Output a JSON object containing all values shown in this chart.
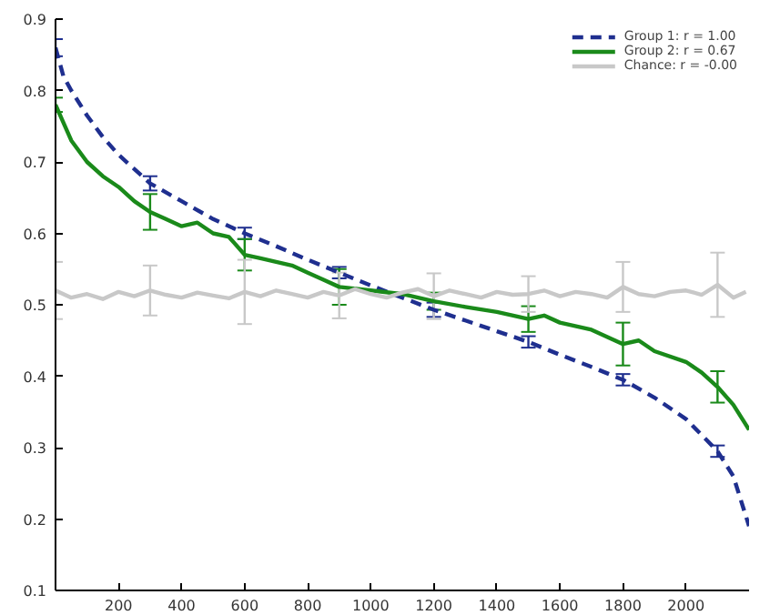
{
  "chart_data": {
    "type": "line",
    "xlim": [
      0,
      2200
    ],
    "ylim": [
      0.1,
      0.9
    ],
    "xticks": [
      200,
      400,
      600,
      800,
      1000,
      1200,
      1400,
      1600,
      1800,
      2000
    ],
    "yticks": [
      0.1,
      0.2,
      0.3,
      0.4,
      0.5,
      0.6,
      0.7,
      0.8,
      0.9
    ],
    "grid": false,
    "legend": "top right",
    "marker": "none",
    "series": [
      {
        "name": "Group 1: r = 1.00",
        "color": "#1f2f8f",
        "line_style": "dashed",
        "x": [
          0,
          25,
          50,
          100,
          150,
          200,
          300,
          400,
          500,
          600,
          700,
          800,
          900,
          1000,
          1100,
          1200,
          1300,
          1400,
          1500,
          1600,
          1700,
          1800,
          1900,
          2000,
          2100,
          2150,
          2200
        ],
        "values": [
          0.86,
          0.82,
          0.8,
          0.765,
          0.735,
          0.71,
          0.67,
          0.645,
          0.62,
          0.6,
          0.582,
          0.563,
          0.545,
          0.527,
          0.51,
          0.493,
          0.478,
          0.463,
          0.448,
          0.43,
          0.413,
          0.395,
          0.37,
          0.34,
          0.295,
          0.26,
          0.19
        ],
        "errors": [
          0.012,
          null,
          null,
          null,
          null,
          null,
          0.01,
          null,
          null,
          0.008,
          null,
          null,
          0.008,
          null,
          null,
          0.01,
          null,
          null,
          0.008,
          null,
          null,
          0.008,
          null,
          null,
          0.008,
          null,
          null
        ]
      },
      {
        "name": "Group 2: r = 0.67",
        "color": "#1a8a1a",
        "line_style": "solid",
        "x": [
          0,
          20,
          50,
          100,
          150,
          200,
          250,
          300,
          350,
          400,
          450,
          500,
          550,
          600,
          650,
          700,
          750,
          800,
          850,
          900,
          1000,
          1100,
          1200,
          1300,
          1400,
          1500,
          1550,
          1600,
          1700,
          1800,
          1850,
          1900,
          2000,
          2050,
          2100,
          2150,
          2200
        ],
        "values": [
          0.78,
          0.76,
          0.73,
          0.7,
          0.68,
          0.665,
          0.645,
          0.63,
          0.62,
          0.61,
          0.615,
          0.6,
          0.595,
          0.57,
          0.565,
          0.56,
          0.555,
          0.545,
          0.535,
          0.525,
          0.52,
          0.515,
          0.505,
          0.497,
          0.49,
          0.48,
          0.485,
          0.475,
          0.465,
          0.445,
          0.45,
          0.435,
          0.42,
          0.405,
          0.385,
          0.36,
          0.325
        ],
        "errors": [
          0.01,
          null,
          null,
          null,
          null,
          null,
          null,
          0.025,
          null,
          null,
          null,
          null,
          null,
          0.022,
          null,
          null,
          null,
          null,
          null,
          0.025,
          null,
          null,
          0.012,
          null,
          null,
          0.018,
          null,
          null,
          null,
          0.03,
          null,
          null,
          null,
          null,
          0.022,
          null,
          null
        ]
      },
      {
        "name": "Chance: r = -0.00",
        "color": "#c8c8c8",
        "line_style": "solid",
        "x": [
          0,
          50,
          100,
          150,
          200,
          250,
          300,
          350,
          400,
          450,
          500,
          550,
          600,
          650,
          700,
          750,
          800,
          850,
          900,
          950,
          1000,
          1050,
          1100,
          1150,
          1200,
          1250,
          1300,
          1350,
          1400,
          1450,
          1500,
          1550,
          1600,
          1650,
          1700,
          1750,
          1800,
          1850,
          1900,
          1950,
          2000,
          2050,
          2100,
          2150,
          2190
        ],
        "values": [
          0.52,
          0.51,
          0.515,
          0.508,
          0.518,
          0.512,
          0.52,
          0.514,
          0.51,
          0.517,
          0.513,
          0.509,
          0.518,
          0.512,
          0.52,
          0.515,
          0.51,
          0.518,
          0.513,
          0.522,
          0.515,
          0.51,
          0.517,
          0.522,
          0.512,
          0.52,
          0.515,
          0.51,
          0.518,
          0.514,
          0.515,
          0.52,
          0.512,
          0.518,
          0.515,
          0.51,
          0.525,
          0.515,
          0.512,
          0.518,
          0.52,
          0.514,
          0.528,
          0.51,
          0.518
        ],
        "errors": [
          0.04,
          null,
          null,
          null,
          null,
          null,
          0.035,
          null,
          null,
          null,
          null,
          null,
          0.045,
          null,
          null,
          null,
          null,
          null,
          0.032,
          null,
          null,
          null,
          null,
          null,
          0.032,
          null,
          null,
          null,
          null,
          null,
          0.025,
          null,
          null,
          null,
          null,
          null,
          0.035,
          null,
          null,
          null,
          null,
          null,
          0.045,
          null,
          null
        ]
      }
    ]
  }
}
